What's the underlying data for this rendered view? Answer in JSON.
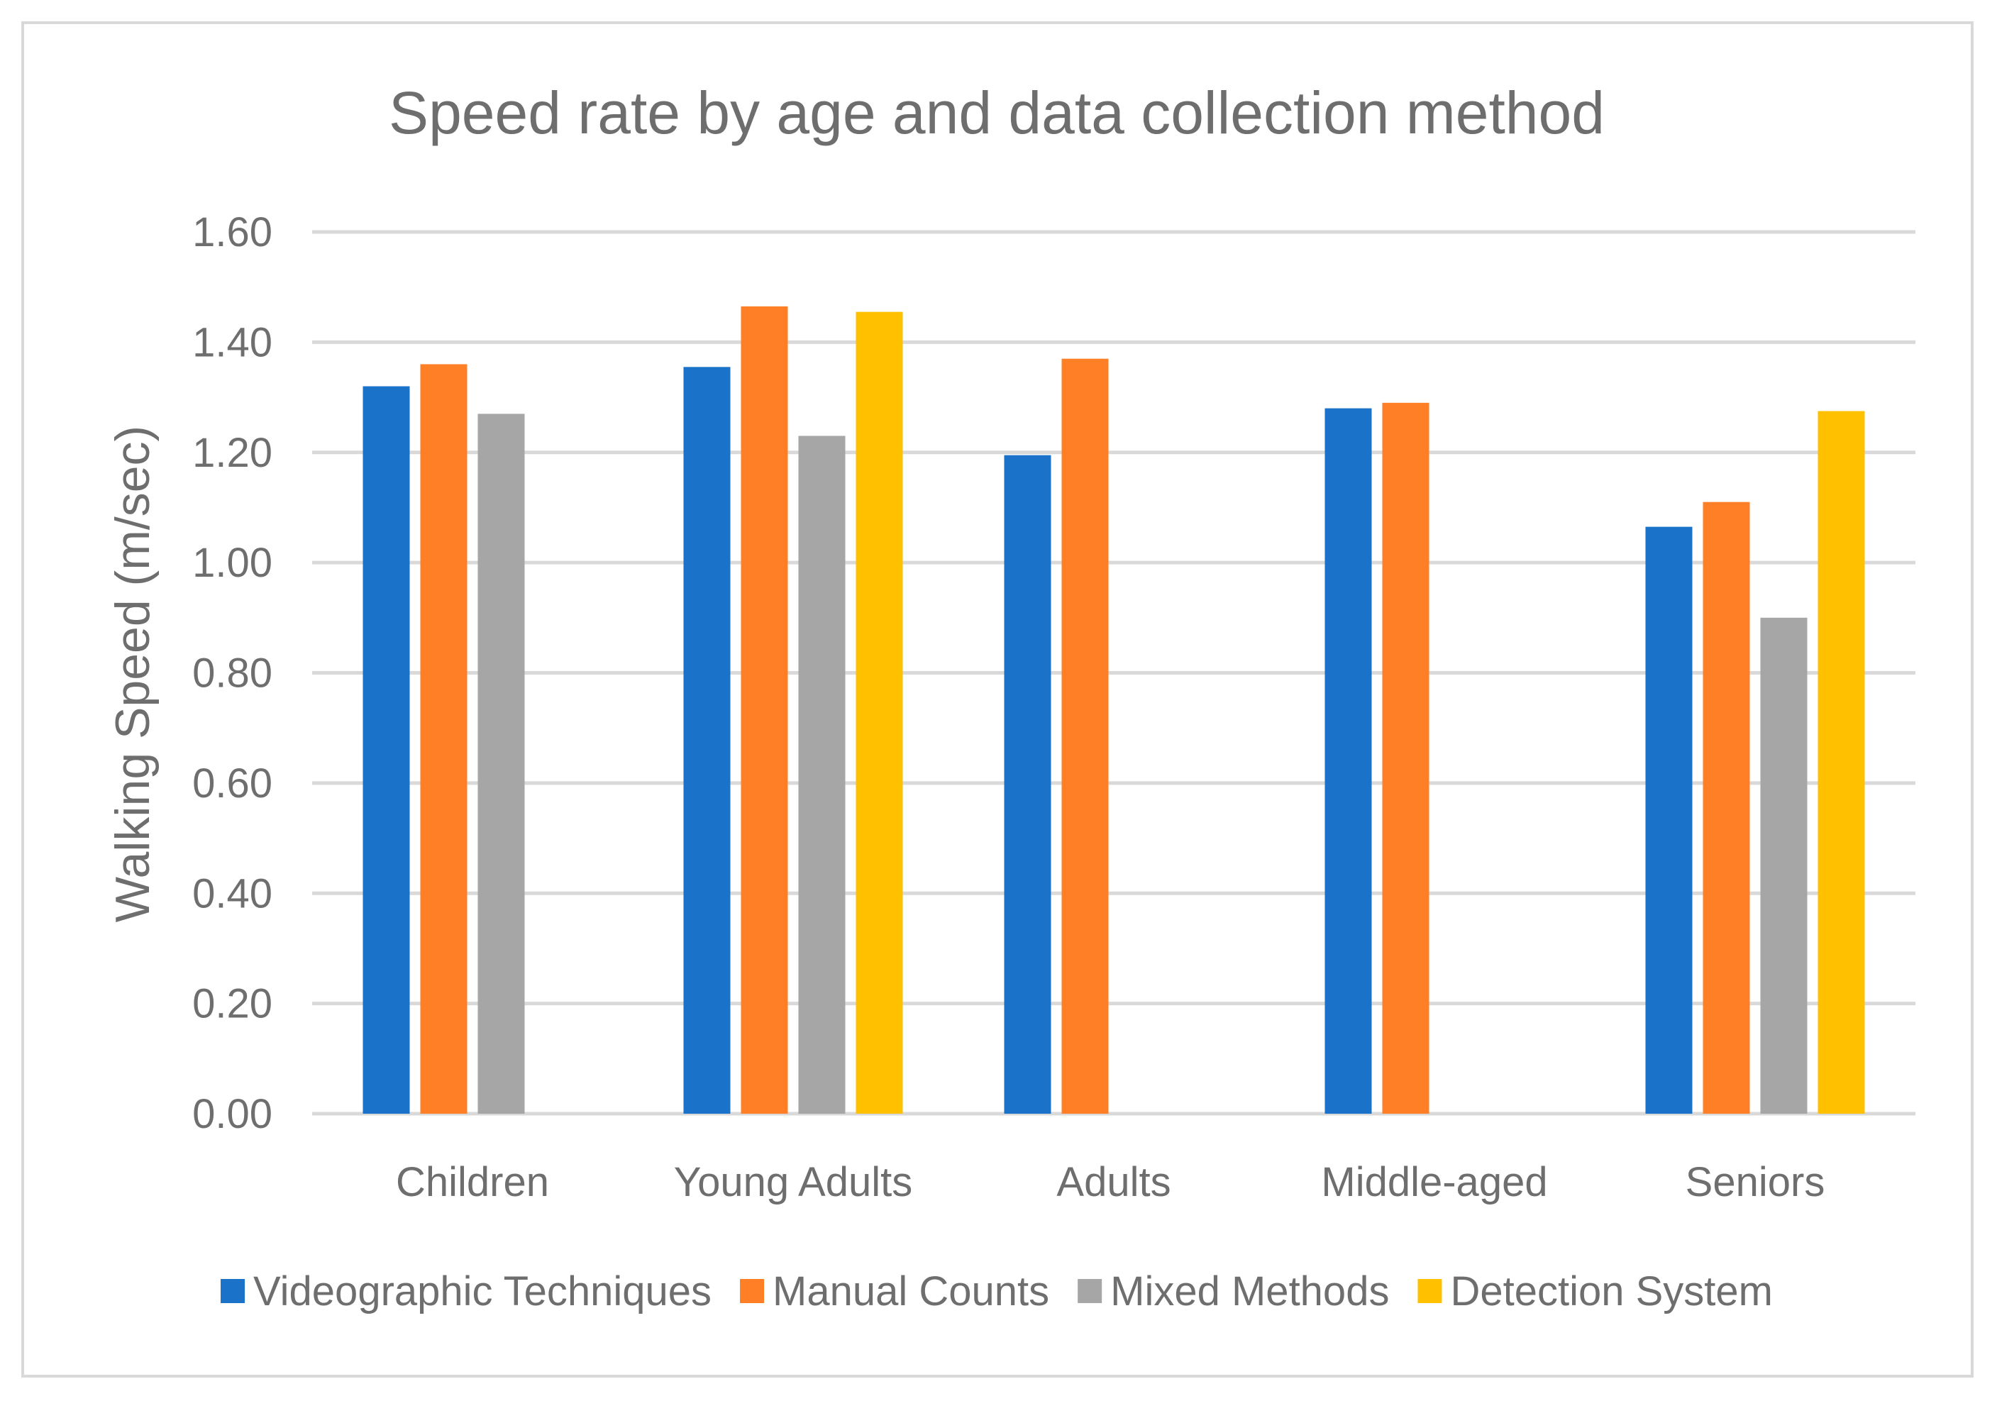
{
  "chart_data": {
    "type": "bar",
    "title": "Speed rate by age and data collection method",
    "xlabel": "",
    "ylabel": "Walking Speed (m/sec)",
    "ylim": [
      0,
      1.6
    ],
    "yticks": [
      "0.00",
      "0.20",
      "0.40",
      "0.60",
      "0.80",
      "1.00",
      "1.20",
      "1.40",
      "1.60"
    ],
    "ytick_values": [
      0,
      0.2,
      0.4,
      0.6,
      0.8,
      1.0,
      1.2,
      1.4,
      1.6
    ],
    "grid": true,
    "legend_position": "bottom",
    "categories": [
      "Children",
      "Young Adults",
      "Adults",
      "Middle-aged",
      "Seniors"
    ],
    "series": [
      {
        "name": "Videographic Techniques",
        "color": "#1a73c8",
        "values": [
          1.32,
          1.355,
          1.195,
          1.28,
          1.065
        ]
      },
      {
        "name": "Manual Counts",
        "color": "#ff7f27",
        "values": [
          1.36,
          1.465,
          1.37,
          1.29,
          1.11
        ]
      },
      {
        "name": "Mixed Methods",
        "color": "#a6a6a6",
        "values": [
          1.27,
          1.23,
          null,
          null,
          0.9
        ]
      },
      {
        "name": "Detection System",
        "color": "#ffc000",
        "values": [
          null,
          1.455,
          null,
          null,
          1.275
        ]
      }
    ]
  },
  "colors": {
    "gridline": "#d9d9d9",
    "text": "#6e6e6e",
    "border": "#d9d9d9"
  }
}
